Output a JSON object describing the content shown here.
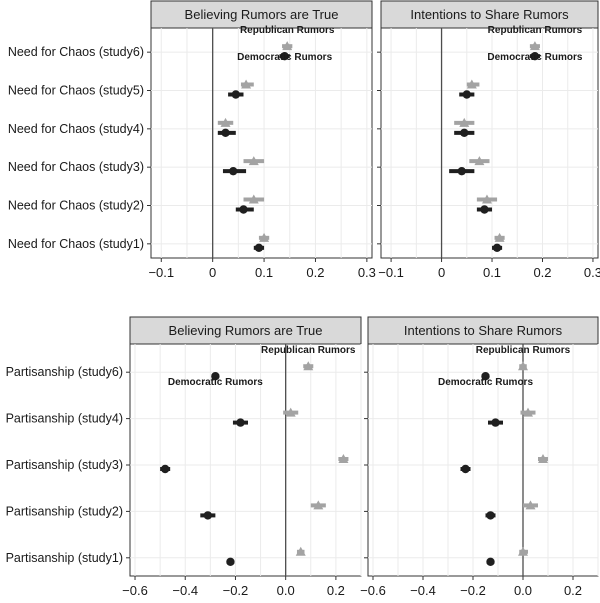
{
  "colors": {
    "republican": "#a3a3a3",
    "democratic": "#1f1f1f",
    "strip_bg": "#d9d9d9",
    "grid": "#ebebeb",
    "zero_line": "#4d4d4d"
  },
  "chart_data": [
    {
      "type": "forest",
      "panel": "top-left",
      "title": "Believing Rumors are True",
      "categories": [
        "Need for Chaos (study6)",
        "Need for Chaos (study5)",
        "Need for Chaos (study4)",
        "Need for Chaos (study3)",
        "Need for Chaos (study2)",
        "Need for Chaos (study1)"
      ],
      "xlim": [
        -0.12,
        0.31
      ],
      "xticks": [
        -0.1,
        0,
        0.1,
        0.2,
        0.3
      ],
      "xtick_labels": [
        "−0.1",
        "0",
        "0.1",
        "0.2",
        "0.3"
      ],
      "annotations": [
        "Republican Rumors",
        "Democratic Rumors"
      ],
      "series": [
        {
          "name": "Republican Rumors",
          "marker": "triangle",
          "values": [
            0.145,
            0.065,
            0.025,
            0.08,
            0.08,
            0.1
          ],
          "ci": [
            [
              0.135,
              0.155
            ],
            [
              0.055,
              0.08
            ],
            [
              0.01,
              0.04
            ],
            [
              0.06,
              0.1
            ],
            [
              0.06,
              0.1
            ],
            [
              0.09,
              0.11
            ]
          ]
        },
        {
          "name": "Democratic Rumors",
          "marker": "circle",
          "values": [
            0.14,
            0.045,
            0.025,
            0.04,
            0.06,
            0.09
          ],
          "ci": [
            [
              0.13,
              0.15
            ],
            [
              0.03,
              0.06
            ],
            [
              0.01,
              0.045
            ],
            [
              0.02,
              0.065
            ],
            [
              0.045,
              0.08
            ],
            [
              0.08,
              0.1
            ]
          ]
        }
      ]
    },
    {
      "type": "forest",
      "panel": "top-right",
      "title": "Intentions to Share Rumors",
      "categories": [
        "Need for Chaos (study6)",
        "Need for Chaos (study5)",
        "Need for Chaos (study4)",
        "Need for Chaos (study3)",
        "Need for Chaos (study2)",
        "Need for Chaos (study1)"
      ],
      "xlim": [
        -0.12,
        0.31
      ],
      "xticks": [
        -0.1,
        0,
        0.1,
        0.2,
        0.3
      ],
      "xtick_labels": [
        "−0.1",
        "0",
        "0.1",
        "0.2",
        "0.3"
      ],
      "annotations": [
        "Republican Rumors",
        "Democratic Rumors"
      ],
      "series": [
        {
          "name": "Republican Rumors",
          "marker": "triangle",
          "values": [
            0.185,
            0.06,
            0.045,
            0.075,
            0.09,
            0.115
          ],
          "ci": [
            [
              0.175,
              0.195
            ],
            [
              0.05,
              0.075
            ],
            [
              0.025,
              0.065
            ],
            [
              0.055,
              0.095
            ],
            [
              0.07,
              0.11
            ],
            [
              0.105,
              0.125
            ]
          ]
        },
        {
          "name": "Democratic Rumors",
          "marker": "circle",
          "values": [
            0.185,
            0.05,
            0.045,
            0.04,
            0.085,
            0.11
          ],
          "ci": [
            [
              0.175,
              0.195
            ],
            [
              0.035,
              0.065
            ],
            [
              0.025,
              0.065
            ],
            [
              0.015,
              0.065
            ],
            [
              0.07,
              0.1
            ],
            [
              0.1,
              0.12
            ]
          ]
        }
      ]
    },
    {
      "type": "forest",
      "panel": "bottom-left",
      "title": "Believing Rumors are True",
      "categories": [
        "Partisanship (study6)",
        "Partisanship (study4)",
        "Partisanship (study3)",
        "Partisanship (study2)",
        "Partisanship (study1)"
      ],
      "xlim": [
        -0.62,
        0.3
      ],
      "xticks": [
        -0.6,
        -0.4,
        -0.2,
        0,
        0.2
      ],
      "xtick_labels": [
        "−0.6",
        "−0.4",
        "−0.2",
        "0.0",
        "0.2"
      ],
      "annotations": [
        "Republican Rumors",
        "Democratic Rumors"
      ],
      "series": [
        {
          "name": "Republican Rumors",
          "marker": "triangle",
          "values": [
            0.09,
            0.02,
            0.23,
            0.13,
            0.06
          ],
          "ci": [
            [
              0.07,
              0.11
            ],
            [
              -0.01,
              0.05
            ],
            [
              0.21,
              0.25
            ],
            [
              0.1,
              0.16
            ],
            [
              0.045,
              0.075
            ]
          ]
        },
        {
          "name": "Democratic Rumors",
          "marker": "circle",
          "values": [
            -0.28,
            -0.18,
            -0.48,
            -0.31,
            -0.22
          ],
          "ci": [
            [
              -0.295,
              -0.265
            ],
            [
              -0.21,
              -0.15
            ],
            [
              -0.5,
              -0.46
            ],
            [
              -0.34,
              -0.28
            ],
            [
              -0.235,
              -0.205
            ]
          ]
        }
      ]
    },
    {
      "type": "forest",
      "panel": "bottom-right",
      "title": "Intentions to Share Rumors",
      "categories": [
        "Partisanship (study6)",
        "Partisanship (study4)",
        "Partisanship (study3)",
        "Partisanship (study2)",
        "Partisanship (study1)"
      ],
      "xlim": [
        -0.62,
        0.3
      ],
      "xticks": [
        -0.6,
        -0.4,
        -0.2,
        0,
        0.2
      ],
      "xtick_labels": [
        "−0.6",
        "−0.4",
        "−0.2",
        "0.0",
        "0.2"
      ],
      "annotations": [
        "Republican Rumors",
        "Democratic Rumors"
      ],
      "series": [
        {
          "name": "Republican Rumors",
          "marker": "triangle",
          "values": [
            0.0,
            0.02,
            0.08,
            0.03,
            0.0
          ],
          "ci": [
            [
              -0.015,
              0.015
            ],
            [
              -0.01,
              0.05
            ],
            [
              0.06,
              0.1
            ],
            [
              0.0,
              0.06
            ],
            [
              -0.015,
              0.02
            ]
          ]
        },
        {
          "name": "Democratic Rumors",
          "marker": "circle",
          "values": [
            -0.15,
            -0.11,
            -0.23,
            -0.13,
            -0.13
          ],
          "ci": [
            [
              -0.165,
              -0.135
            ],
            [
              -0.14,
              -0.08
            ],
            [
              -0.25,
              -0.21
            ],
            [
              -0.15,
              -0.11
            ],
            [
              -0.145,
              -0.115
            ]
          ]
        }
      ]
    }
  ]
}
